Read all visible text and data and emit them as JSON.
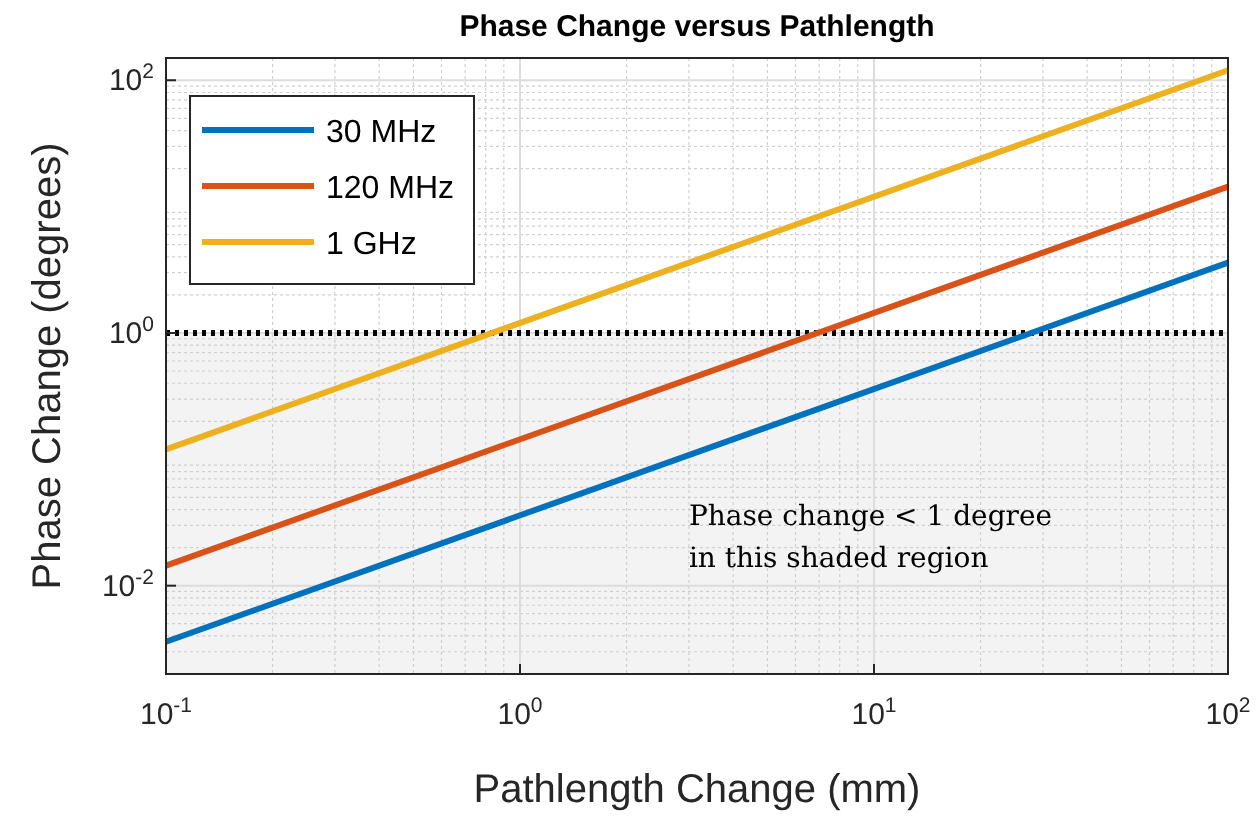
{
  "chart_data": {
    "type": "line",
    "title": "Phase Change versus Pathlength",
    "xlabel": "Pathlength Change (mm)",
    "ylabel": "Phase Change (degrees)",
    "log": "xy",
    "grid": true,
    "legend": "top left",
    "line_style": "solid",
    "xlim": [
      0.1,
      100
    ],
    "ylim": [
      0.002,
      150
    ],
    "xticks": [
      {
        "value": 0.1,
        "label": "10$^{-1}$"
      },
      {
        "value": 1,
        "label": "10$^{0}$"
      },
      {
        "value": 10,
        "label": "10$^{1}$"
      },
      {
        "value": 100,
        "label": "10$^{2}$"
      }
    ],
    "yticks": [
      {
        "value": 0.01,
        "label": "10$^{-2}$"
      },
      {
        "value": 1,
        "label": "10$^{0}$"
      },
      {
        "value": 100,
        "label": "10$^{2}$"
      }
    ],
    "x": [
      0.1,
      100
    ],
    "series": [
      {
        "name": "30 MHz",
        "color": "#0072bd",
        "values": [
          0.0036,
          3.6
        ]
      },
      {
        "name": "120 MHz",
        "color": "#d95319",
        "values": [
          0.0144,
          14.4
        ]
      },
      {
        "name": "1 GHz",
        "color": "#edb120",
        "values": [
          0.12,
          120
        ]
      }
    ],
    "ref_lines": [
      {
        "axis": "y",
        "value": 1,
        "color": "#000000",
        "line_style": "dotted"
      }
    ],
    "bands": [
      {
        "axis": "y",
        "from": 0.002,
        "to": 1,
        "color": "#f3f3f3",
        "label": "Phase change < 1 degree\nin this shaded region"
      }
    ]
  }
}
